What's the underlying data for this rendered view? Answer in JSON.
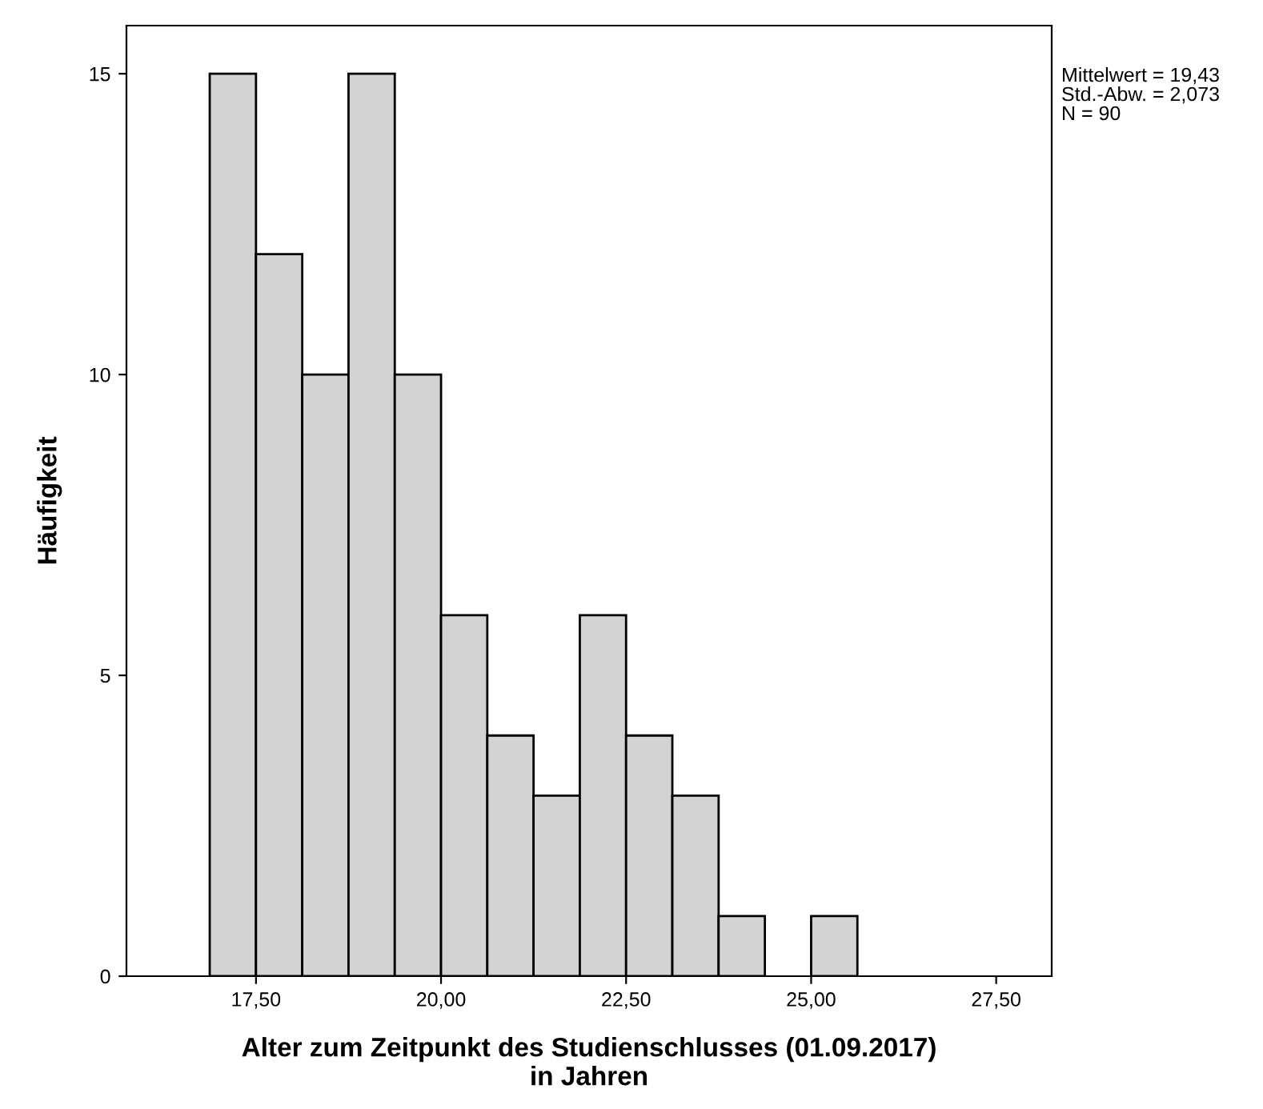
{
  "chart_data": {
    "type": "histogram",
    "xlabel": "Alter zum Zeitpunkt des Studienschlusses (01.09.2017)\nin Jahren",
    "ylabel": "Häufigkeit",
    "bins": [
      16.875,
      17.5,
      18.125,
      18.75,
      19.375,
      20.0,
      20.625,
      21.25,
      21.875,
      22.5,
      23.125,
      23.75,
      24.375,
      25.0,
      25.625
    ],
    "values": [
      15,
      12,
      10,
      15,
      10,
      6,
      4,
      3,
      6,
      4,
      3,
      1,
      0,
      1
    ],
    "color": "#d3d3d3",
    "xlim": [
      15.75,
      28.25
    ],
    "xticks": [
      {
        "value": 17.5,
        "label": "17,50"
      },
      {
        "value": 20.0,
        "label": "20,00"
      },
      {
        "value": 22.5,
        "label": "22,50"
      },
      {
        "value": 25.0,
        "label": "25,00"
      },
      {
        "value": 27.5,
        "label": "27,50"
      }
    ],
    "ylim": [
      0,
      15.8
    ],
    "yticks": [
      0,
      5,
      10,
      15
    ],
    "grid": false,
    "annotations": [
      "Mittelwert = 19,43",
      "Std.-Abw. = 2,073",
      "N = 90"
    ]
  }
}
